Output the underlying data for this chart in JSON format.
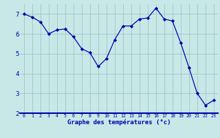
{
  "hours": [
    0,
    1,
    2,
    3,
    4,
    5,
    6,
    7,
    8,
    9,
    10,
    11,
    12,
    13,
    14,
    15,
    16,
    17,
    18,
    19,
    20,
    21,
    22,
    23
  ],
  "temperatures": [
    7.0,
    6.85,
    6.6,
    6.0,
    6.2,
    6.25,
    5.85,
    5.25,
    5.05,
    4.35,
    4.75,
    5.7,
    6.4,
    6.4,
    6.75,
    6.8,
    7.3,
    6.75,
    6.65,
    5.55,
    4.3,
    3.0,
    2.4,
    2.65
  ],
  "line_color": "#0000aa",
  "marker_color": "#0000aa",
  "bg_color": "#c8e8e8",
  "grid_color": "#a0c4c4",
  "xlabel": "Graphe des températures (°c)",
  "xlabel_color": "#0000aa",
  "tick_color": "#0000aa",
  "axis_line_color": "#0000aa",
  "ylim": [
    2,
    7.5
  ],
  "xlim": [
    -0.5,
    23.5
  ],
  "yticks": [
    2,
    3,
    4,
    5,
    6,
    7
  ],
  "xticks": [
    0,
    1,
    2,
    3,
    4,
    5,
    6,
    7,
    8,
    9,
    10,
    11,
    12,
    13,
    14,
    15,
    16,
    17,
    18,
    19,
    20,
    21,
    22,
    23
  ],
  "xtick_labels": [
    "0",
    "1",
    "2",
    "3",
    "4",
    "5",
    "6",
    "7",
    "8",
    "9",
    "10",
    "11",
    "12",
    "13",
    "14",
    "15",
    "16",
    "17",
    "18",
    "19",
    "20",
    "21",
    "22",
    "23"
  ],
  "xlabel_fontsize": 6.5,
  "tick_fontsize_x": 4.8,
  "tick_fontsize_y": 6.5
}
